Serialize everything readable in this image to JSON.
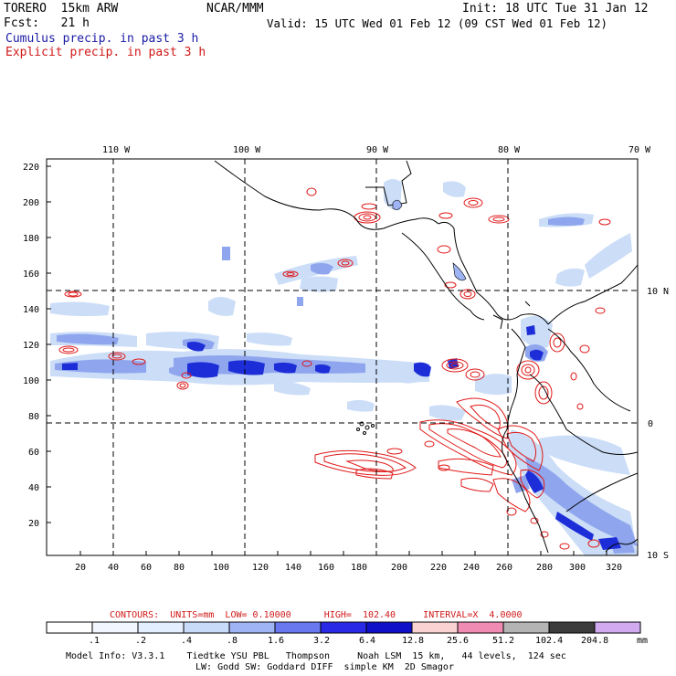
{
  "header": {
    "model": "TORERO  15km ARW",
    "org": "NCAR/MMM",
    "init": "Init: 18 UTC Tue 31 Jan 12",
    "fcst": "Fcst:   21 h",
    "valid": "Valid: 15 UTC Wed 01 Feb 12 (09 CST Wed 01 Feb 12)",
    "field1": "Cumulus precip. in past 3 h",
    "field2": "Explicit precip. in past 3 h"
  },
  "map": {
    "lon_labels": [
      "110 W",
      "100 W",
      "90 W",
      "80 W",
      "70 W"
    ],
    "lat_labels": [
      "10 N",
      "0",
      "10 S"
    ],
    "x_ticks": [
      "20",
      "40",
      "60",
      "80",
      "100",
      "120",
      "140",
      "160",
      "180",
      "200",
      "220",
      "240",
      "260",
      "280",
      "300",
      "320"
    ],
    "y_ticks": [
      "220",
      "200",
      "180",
      "160",
      "140",
      "120",
      "100",
      "80",
      "60",
      "40",
      "20"
    ]
  },
  "contours": {
    "title": "CONTOURS:  UNITS=mm  LOW= 0.10000      HIGH=  102.40     INTERVAL=X  4.0000"
  },
  "colorbar": {
    "labels": [
      ".1",
      ".2",
      ".4",
      ".8",
      "1.6",
      "3.2",
      "6.4",
      "12.8",
      "25.6",
      "51.2",
      "102.4",
      "204.8"
    ],
    "unit": "mm",
    "colors": [
      "#ffffff",
      "#f2f7ff",
      "#e3efff",
      "#c8dcfa",
      "#9fb4f4",
      "#6a78f0",
      "#2a2ae6",
      "#1010c8",
      "#fad2d2",
      "#f08cb4",
      "#b4b4b4",
      "#3c3c3c",
      "#d2aaf0"
    ]
  },
  "footer": {
    "line1": "Model Info: V3.3.1    Tiedtke YSU PBL   Thompson     Noah LSM  15 km,   44 levels,  124 sec",
    "line2": "LW: Godd SW: Goddard DIFF  simple KM  2D Smagor"
  },
  "colors": {
    "cumulus_light": "#c9dcf7",
    "cumulus_mid": "#8fa6ee",
    "cumulus_heavy": "#1d2ed8",
    "explicit": "#e01818"
  }
}
